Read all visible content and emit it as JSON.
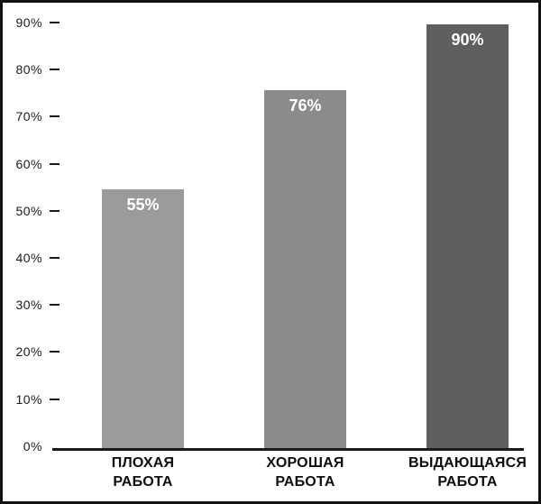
{
  "chart_data": {
    "type": "bar",
    "title": "",
    "xlabel": "",
    "ylabel": "",
    "categories": [
      "ПЛОХАЯ РАБОТА",
      "ХОРОШАЯ РАБОТА",
      "ВЫДАЮЩАЯСЯ РАБОТА"
    ],
    "values": [
      55,
      76,
      90
    ],
    "ylim": [
      0,
      90
    ],
    "grid": false,
    "legend": false,
    "bars": [
      {
        "label_line1": "ПЛОХАЯ",
        "label_line2": "РАБОТА",
        "value": 55,
        "value_label": "55%",
        "color": "#9a9b9d"
      },
      {
        "label_line1": "ХОРОШАЯ",
        "label_line2": "РАБОТА",
        "value": 76,
        "value_label": "76%",
        "color": "#8a8b8d"
      },
      {
        "label_line1": "ВЫДАЮЩАЯСЯ",
        "label_line2": "РАБОТА",
        "value": 90,
        "value_label": "90%",
        "color": "#5d5f61"
      }
    ],
    "y_axis": {
      "ticks": [
        "90%",
        "80%",
        "70%",
        "60%",
        "50%",
        "40%",
        "30%",
        "20%",
        "10%",
        "0%"
      ],
      "tick_values": [
        90,
        80,
        70,
        60,
        50,
        40,
        30,
        20,
        10,
        0
      ]
    }
  },
  "colors": {
    "axis": "#1a1a1a",
    "tick_text": "#1a1a1a",
    "category_text": "#0d0d0d",
    "value_text": "#ffffff",
    "background": "#ffffff",
    "border": "#111111"
  }
}
